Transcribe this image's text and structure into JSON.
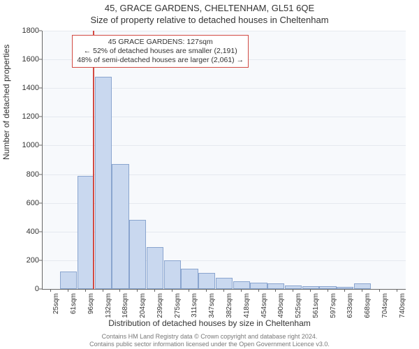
{
  "title_main": "45, GRACE GARDENS, CHELTENHAM, GL51 6QE",
  "title_sub": "Size of property relative to detached houses in Cheltenham",
  "chart": {
    "type": "histogram",
    "background_color": "#f7f9fc",
    "grid_color": "#e5e9ef",
    "axis_color": "#666666",
    "bar_fill": "#c9d8ef",
    "bar_border": "#8aa5cf",
    "marker_color": "#d24a43",
    "ylabel": "Number of detached properties",
    "xlabel": "Distribution of detached houses by size in Cheltenham",
    "ylim": [
      0,
      1800
    ],
    "ytick_step": 200,
    "yticks": [
      0,
      200,
      400,
      600,
      800,
      1000,
      1200,
      1400,
      1600,
      1800
    ],
    "xtick_labels": [
      "25sqm",
      "61sqm",
      "96sqm",
      "132sqm",
      "168sqm",
      "204sqm",
      "239sqm",
      "275sqm",
      "311sqm",
      "347sqm",
      "382sqm",
      "418sqm",
      "454sqm",
      "490sqm",
      "525sqm",
      "561sqm",
      "597sqm",
      "633sqm",
      "668sqm",
      "704sqm",
      "740sqm"
    ],
    "bar_values": [
      0,
      120,
      790,
      1480,
      870,
      480,
      290,
      200,
      140,
      110,
      80,
      55,
      45,
      40,
      25,
      20,
      20,
      15,
      40,
      0,
      0
    ],
    "marker_x_sqm": 127,
    "x_min_sqm": 25,
    "x_max_sqm": 758,
    "label_fontsize": 12,
    "tick_fontsize": 11,
    "xtick_fontsize": 10
  },
  "annotation": {
    "line1": "45 GRACE GARDENS: 127sqm",
    "line2": "← 52% of detached houses are smaller (2,191)",
    "line3": "48% of semi-detached houses are larger (2,061) →",
    "border_color": "#d24a43",
    "fontsize": 10.5
  },
  "footer": {
    "line1": "Contains HM Land Registry data © Crown copyright and database right 2024.",
    "line2": "Contains public sector information licensed under the Open Government Licence v3.0.",
    "color": "#777777",
    "fontsize": 9
  }
}
